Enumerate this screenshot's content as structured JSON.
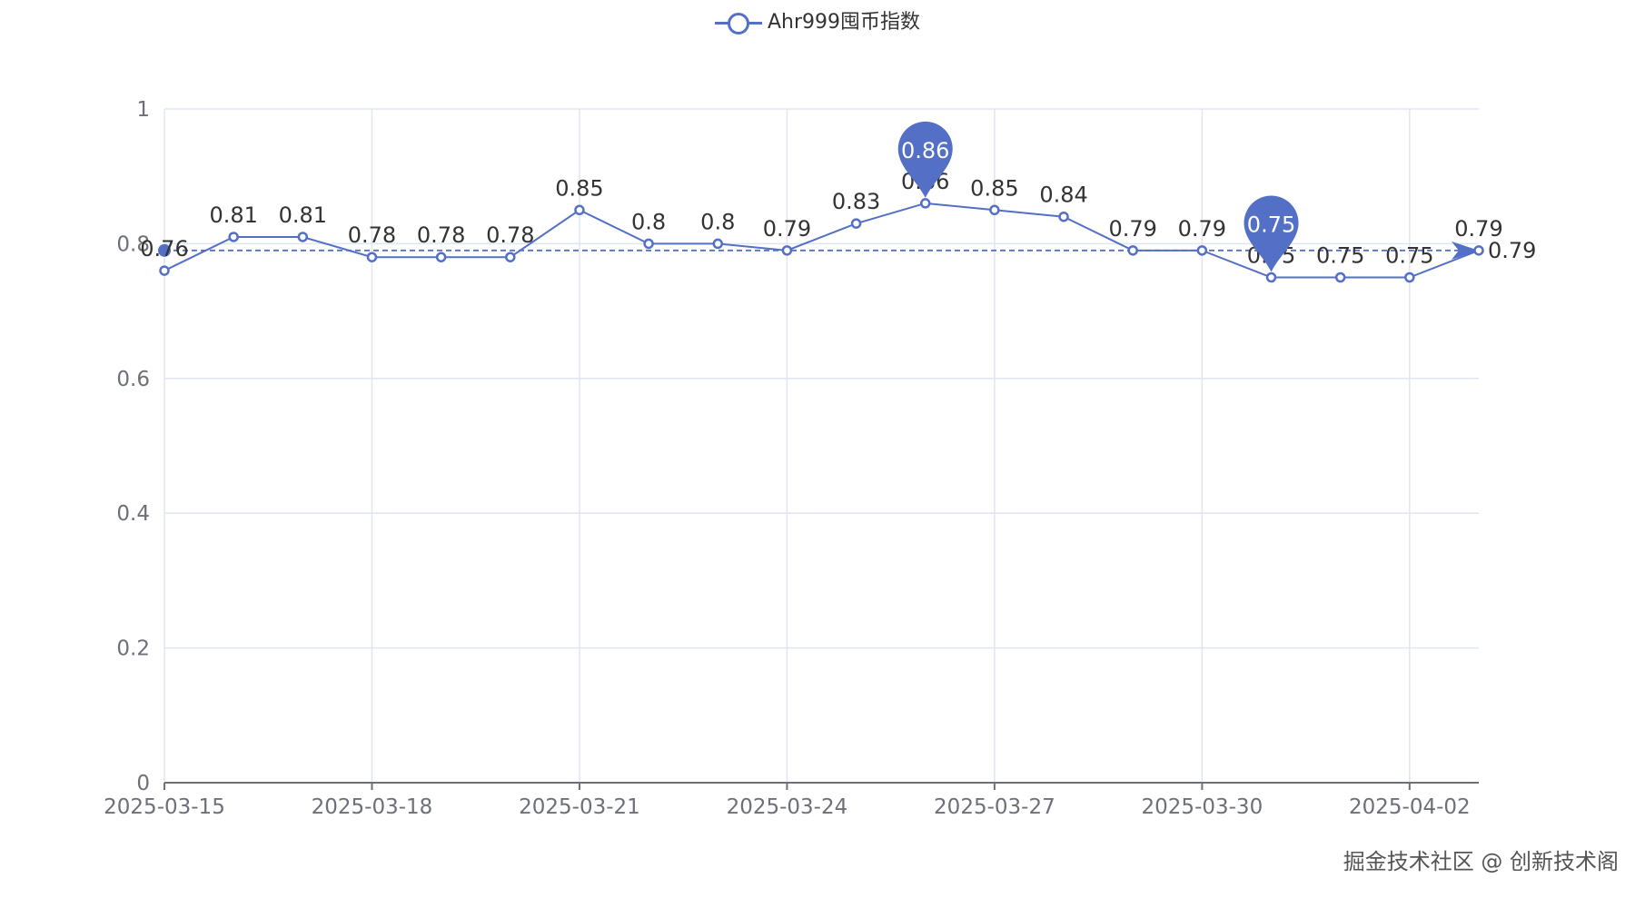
{
  "chart_data": {
    "type": "line",
    "title": "",
    "legend": [
      "Ahr999囤币指数"
    ],
    "legend_placement": "top-center",
    "x": [
      "2025-03-15",
      "2025-03-16",
      "2025-03-17",
      "2025-03-18",
      "2025-03-19",
      "2025-03-20",
      "2025-03-21",
      "2025-03-22",
      "2025-03-23",
      "2025-03-24",
      "2025-03-25",
      "2025-03-26",
      "2025-03-27",
      "2025-03-28",
      "2025-03-29",
      "2025-03-30",
      "2025-03-31",
      "2025-04-01",
      "2025-04-02",
      "2025-04-03"
    ],
    "x_tick_labels": [
      "2025-03-15",
      "2025-03-18",
      "2025-03-21",
      "2025-03-24",
      "2025-03-27",
      "2025-03-30",
      "2025-04-02"
    ],
    "series": [
      {
        "name": "Ahr999囤币指数",
        "values": [
          0.76,
          0.81,
          0.81,
          0.78,
          0.78,
          0.78,
          0.85,
          0.8,
          0.8,
          0.79,
          0.83,
          0.86,
          0.85,
          0.84,
          0.79,
          0.79,
          0.75,
          0.75,
          0.75,
          0.79
        ]
      }
    ],
    "mark_points": [
      {
        "type": "max",
        "label": "0.86",
        "index": 11
      },
      {
        "type": "min",
        "label": "0.75",
        "index": 16
      }
    ],
    "mark_line": {
      "type": "average",
      "value": 0.79,
      "label": "0.79"
    },
    "ylim": [
      0,
      1
    ],
    "y_ticks": [
      "0",
      "0.2",
      "0.4",
      "0.6",
      "0.8",
      "1"
    ],
    "grid": true,
    "color": "#5470c6"
  },
  "watermark": "掘金技术社区 @ 创新技术阁"
}
